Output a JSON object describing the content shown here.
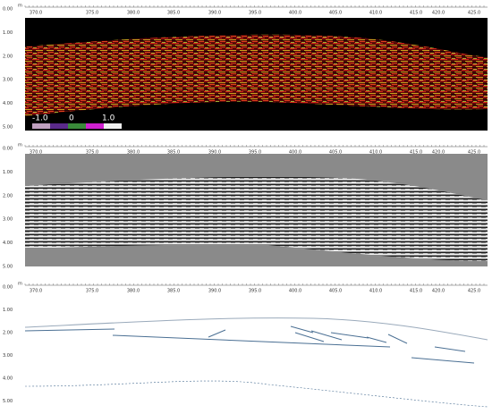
{
  "panels": [
    {
      "unit": "m",
      "xticks": [
        "370.0",
        "375.0",
        "380.0",
        "385.0",
        "390.0",
        "395.0",
        "400.0",
        "405.0",
        "410.0",
        "415.0",
        "420.0",
        "425.0"
      ],
      "yticks": [
        "0.00",
        "1.00",
        "2.00",
        "3.00",
        "4.00",
        "5.00"
      ],
      "colorbar": [
        "-1.0",
        "0",
        "1.0"
      ]
    },
    {
      "unit": "m",
      "xticks": [
        "370.0",
        "375.0",
        "380.0",
        "385.0",
        "390.0",
        "395.0",
        "400.0",
        "405.0",
        "410.0",
        "415.0",
        "420.0",
        "425.0"
      ],
      "yticks": [
        "0.00",
        "1.00",
        "2.00",
        "3.00",
        "4.00",
        "5.00"
      ]
    },
    {
      "unit": "m",
      "xticks": [
        "370.0",
        "375.0",
        "380.0",
        "385.0",
        "390.0",
        "395.0",
        "400.0",
        "405.0",
        "410.0",
        "415.0",
        "420.0",
        "425.0"
      ],
      "yticks": [
        "0.00",
        "1.00",
        "2.00",
        "3.00",
        "4.00",
        "5.00"
      ]
    }
  ]
}
